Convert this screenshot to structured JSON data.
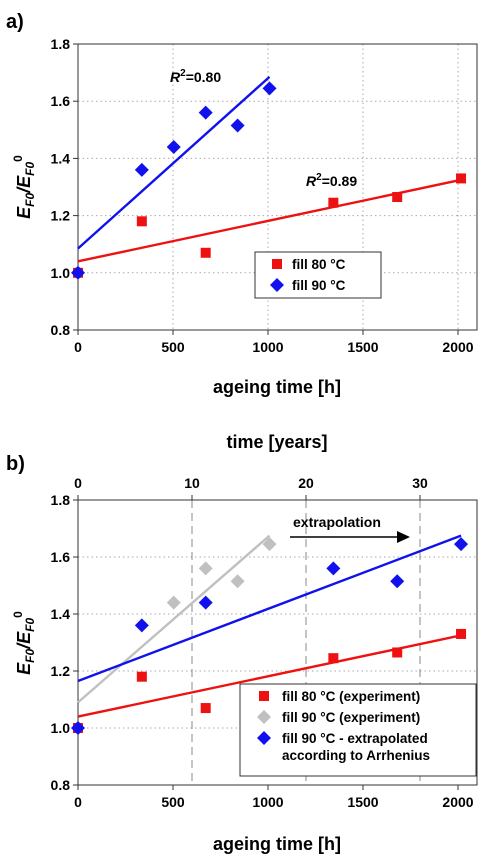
{
  "chart_data": [
    {
      "panel_label": "a)",
      "type": "scatter",
      "xlabel": "ageing time [h]",
      "ylabel_parts": {
        "main": "E",
        "sub": "F0",
        "slash": "/",
        "main2": "E",
        "sub2": "F0",
        "sup2": "0"
      },
      "xlim": [
        0,
        2100
      ],
      "ylim": [
        0.8,
        1.8
      ],
      "xticks": [
        0,
        500,
        1000,
        1500,
        2000
      ],
      "yticks": [
        "0.8",
        "1.0",
        "1.2",
        "1.4",
        "1.6",
        "1.8"
      ],
      "grid": "dotted",
      "legend_position": "center-right",
      "series": [
        {
          "name": "fill 80 °C",
          "marker": "square",
          "color": "#ee1111",
          "points": [
            [
              0,
              1.0
            ],
            [
              336,
              1.18
            ],
            [
              672,
              1.07
            ],
            [
              1344,
              1.245
            ],
            [
              1680,
              1.265
            ],
            [
              2016,
              1.33
            ]
          ],
          "fit": [
            [
              0,
              1.04
            ],
            [
              2016,
              1.325
            ]
          ]
        },
        {
          "name": "fill 90 °C",
          "marker": "diamond",
          "color": "#1111ee",
          "points": [
            [
              0,
              1.0
            ],
            [
              336,
              1.36
            ],
            [
              504,
              1.44
            ],
            [
              672,
              1.56
            ],
            [
              840,
              1.515
            ],
            [
              1008,
              1.645
            ]
          ],
          "fit": [
            [
              0,
              1.085
            ],
            [
              1008,
              1.685
            ]
          ]
        }
      ],
      "annotations": [
        {
          "text_main": "R",
          "text_sup": "2",
          "text_rest": "=0.80",
          "series": "fill 90 °C"
        },
        {
          "text_main": "R",
          "text_sup": "2",
          "text_rest": "=0.89",
          "series": "fill 80 °C"
        }
      ]
    },
    {
      "panel_label": "b)",
      "type": "scatter",
      "xlabel": "ageing time [h]",
      "x2label": "time [years]",
      "ylabel_parts": {
        "main": "E",
        "sub": "F0",
        "slash": "/",
        "main2": "E",
        "sub2": "F0",
        "sup2": "0"
      },
      "xlim": [
        0,
        2100
      ],
      "x2lim": [
        0,
        35
      ],
      "ylim": [
        0.8,
        1.8
      ],
      "xticks": [
        0,
        500,
        1000,
        1500,
        2000
      ],
      "x2ticks": [
        0,
        10,
        20,
        30
      ],
      "yticks": [
        "0.8",
        "1.0",
        "1.2",
        "1.4",
        "1.6",
        "1.8"
      ],
      "grid": "dashed at secondary ticks",
      "legend_position": "bottom-right",
      "extrapolation_label": "extrapolation",
      "series": [
        {
          "name": "fill 80 °C (experiment)",
          "marker": "square",
          "color": "#ee1111",
          "points": [
            [
              0,
              1.0
            ],
            [
              336,
              1.18
            ],
            [
              672,
              1.07
            ],
            [
              1344,
              1.245
            ],
            [
              1680,
              1.265
            ],
            [
              2016,
              1.33
            ]
          ],
          "fit": [
            [
              0,
              1.04
            ],
            [
              2016,
              1.325
            ]
          ]
        },
        {
          "name": "fill 90 °C (experiment)",
          "marker": "diamond",
          "color": "#c0c0c0",
          "points": [
            [
              504,
              1.44
            ],
            [
              672,
              1.56
            ],
            [
              840,
              1.515
            ],
            [
              1008,
              1.645
            ]
          ],
          "fit": [
            [
              0,
              1.09
            ],
            [
              1008,
              1.675
            ]
          ]
        },
        {
          "name": "fill 90 °C - extrapolated\naccording to Arrhenius",
          "marker": "diamond",
          "color": "#1111ee",
          "points": [
            [
              0,
              1.0
            ],
            [
              336,
              1.36
            ],
            [
              672,
              1.44
            ],
            [
              1344,
              1.56
            ],
            [
              1680,
              1.515
            ],
            [
              2016,
              1.645
            ]
          ],
          "fit": [
            [
              0,
              1.165
            ],
            [
              2016,
              1.675
            ]
          ]
        }
      ]
    }
  ]
}
